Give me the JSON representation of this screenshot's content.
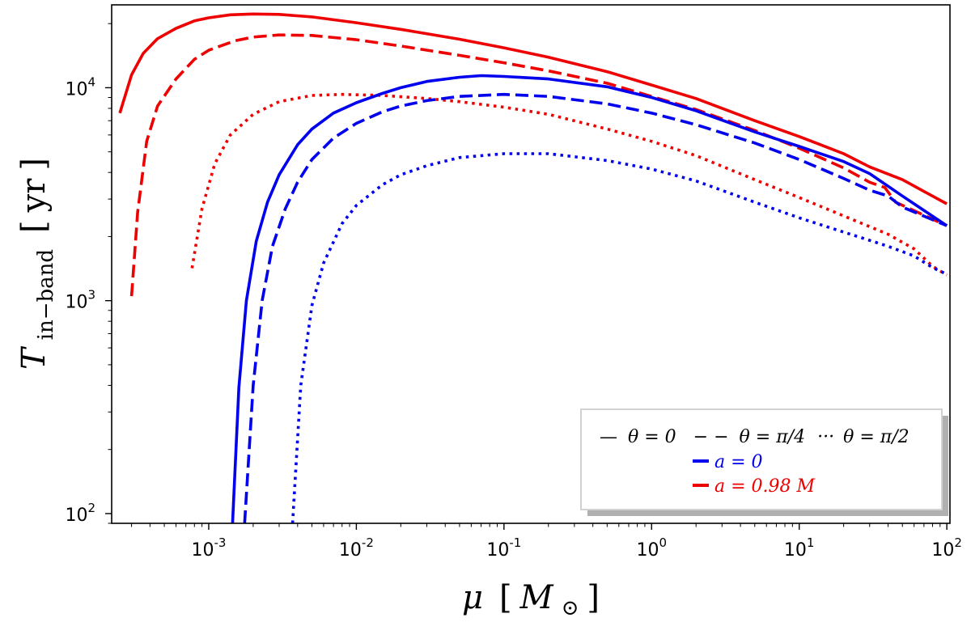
{
  "chart_data": {
    "type": "line",
    "title": "",
    "xlabel": {
      "main": "μ",
      "bracket_symbol": "M",
      "bracket_subscript": "⊙"
    },
    "ylabel": {
      "main": "T",
      "subscript": "in−band",
      "unit": "yr"
    },
    "xscale": "log",
    "yscale": "log",
    "xlim": [
      0.00022,
      105
    ],
    "ylim": [
      90,
      24500
    ],
    "x_ticks": [
      {
        "value": 0.001,
        "base": "10",
        "exp": "-3"
      },
      {
        "value": 0.01,
        "base": "10",
        "exp": "-2"
      },
      {
        "value": 0.1,
        "base": "10",
        "exp": "-1"
      },
      {
        "value": 1,
        "base": "10",
        "exp": "0"
      },
      {
        "value": 10,
        "base": "10",
        "exp": "1"
      },
      {
        "value": 100,
        "base": "10",
        "exp": "2"
      }
    ],
    "y_ticks": [
      {
        "value": 100,
        "base": "10",
        "exp": "2"
      },
      {
        "value": 1000,
        "base": "10",
        "exp": "3"
      },
      {
        "value": 10000,
        "base": "10",
        "exp": "4"
      }
    ],
    "colors": {
      "a0": "#0000ee",
      "a098": "#ee0000"
    },
    "legend": {
      "position": "lower-right",
      "theta_entries": [
        {
          "symbol": "—",
          "text": "θ = 0"
        },
        {
          "symbol": "− −",
          "text": "θ = π/4"
        },
        {
          "symbol": "···",
          "text": "θ = π/2"
        }
      ],
      "spin_entries": [
        {
          "text": "a = 0",
          "color_key": "a0"
        },
        {
          "text": "a = 0.98 M",
          "color_key": "a098"
        }
      ]
    },
    "series": [
      {
        "name": "a=0.98M, θ=0",
        "color_key": "a098",
        "style": "solid",
        "x": [
          0.00025,
          0.0003,
          0.00036,
          0.00045,
          0.0006,
          0.0008,
          0.001,
          0.0014,
          0.002,
          0.003,
          0.005,
          0.01,
          0.02,
          0.05,
          0.1,
          0.2,
          0.5,
          1,
          2,
          5,
          10,
          20,
          30,
          50,
          100
        ],
        "y": [
          7600,
          11500,
          14500,
          17000,
          19000,
          20600,
          21300,
          22000,
          22200,
          22100,
          21500,
          20200,
          18800,
          16900,
          15400,
          13900,
          11900,
          10300,
          8900,
          7000,
          5900,
          4900,
          4250,
          3700,
          2850
        ]
      },
      {
        "name": "a=0.98M, θ=π/4",
        "color_key": "a098",
        "style": "dashed",
        "x": [
          0.0003,
          0.00033,
          0.00038,
          0.00045,
          0.0006,
          0.0008,
          0.001,
          0.0015,
          0.002,
          0.003,
          0.005,
          0.01,
          0.02,
          0.05,
          0.1,
          0.2,
          0.5,
          1,
          2,
          5,
          10,
          20,
          30,
          38,
          45,
          100
        ],
        "y": [
          1050,
          2600,
          5600,
          8200,
          11000,
          13600,
          15000,
          16600,
          17300,
          17700,
          17600,
          16800,
          15700,
          14200,
          13100,
          12000,
          10500,
          9100,
          7900,
          6300,
          5200,
          4200,
          3600,
          3400,
          2900,
          2250
        ]
      },
      {
        "name": "a=0.98M, θ=π/2",
        "color_key": "a098",
        "style": "dotted",
        "x": [
          0.00077,
          0.0009,
          0.0011,
          0.0014,
          0.002,
          0.003,
          0.005,
          0.008,
          0.015,
          0.03,
          0.05,
          0.1,
          0.2,
          0.5,
          1,
          2,
          5,
          10,
          20,
          40,
          60,
          80,
          100
        ],
        "y": [
          1420,
          2700,
          4400,
          6000,
          7500,
          8600,
          9200,
          9300,
          9200,
          8900,
          8600,
          8100,
          7500,
          6400,
          5600,
          4800,
          3700,
          3050,
          2500,
          2050,
          1750,
          1450,
          1320
        ]
      },
      {
        "name": "a=0, θ=0",
        "color_key": "a0",
        "style": "solid",
        "x": [
          0.00145,
          0.0016,
          0.0018,
          0.0021,
          0.0025,
          0.003,
          0.004,
          0.005,
          0.007,
          0.01,
          0.015,
          0.02,
          0.03,
          0.05,
          0.07,
          0.1,
          0.2,
          0.5,
          1,
          2,
          5,
          10,
          20,
          30,
          50,
          100
        ],
        "y": [
          90,
          390,
          1000,
          1900,
          2900,
          3900,
          5400,
          6400,
          7600,
          8500,
          9400,
          10000,
          10700,
          11200,
          11400,
          11300,
          11000,
          10100,
          9000,
          7800,
          6200,
          5300,
          4500,
          3950,
          3100,
          2250
        ]
      },
      {
        "name": "a=0, θ=π/4",
        "color_key": "a0",
        "style": "dashed",
        "x": [
          0.00175,
          0.002,
          0.0023,
          0.0027,
          0.0033,
          0.004,
          0.005,
          0.007,
          0.01,
          0.015,
          0.02,
          0.03,
          0.05,
          0.1,
          0.2,
          0.5,
          1,
          2,
          5,
          10,
          20,
          30,
          40,
          50,
          100
        ],
        "y": [
          90,
          400,
          1000,
          1800,
          2700,
          3600,
          4600,
          5800,
          6800,
          7700,
          8200,
          8700,
          9100,
          9300,
          9100,
          8400,
          7600,
          6700,
          5500,
          4600,
          3750,
          3300,
          3100,
          2750,
          2250
        ]
      },
      {
        "name": "a=0, θ=π/2",
        "color_key": "a0",
        "style": "dotted",
        "x": [
          0.0037,
          0.0042,
          0.005,
          0.006,
          0.008,
          0.01,
          0.015,
          0.02,
          0.03,
          0.05,
          0.1,
          0.2,
          0.5,
          1,
          2,
          5,
          10,
          20,
          40,
          60,
          80,
          100
        ],
        "y": [
          90,
          400,
          950,
          1500,
          2300,
          2800,
          3500,
          3900,
          4300,
          4700,
          4900,
          4900,
          4550,
          4150,
          3650,
          2900,
          2450,
          2100,
          1800,
          1620,
          1430,
          1330
        ]
      }
    ]
  }
}
